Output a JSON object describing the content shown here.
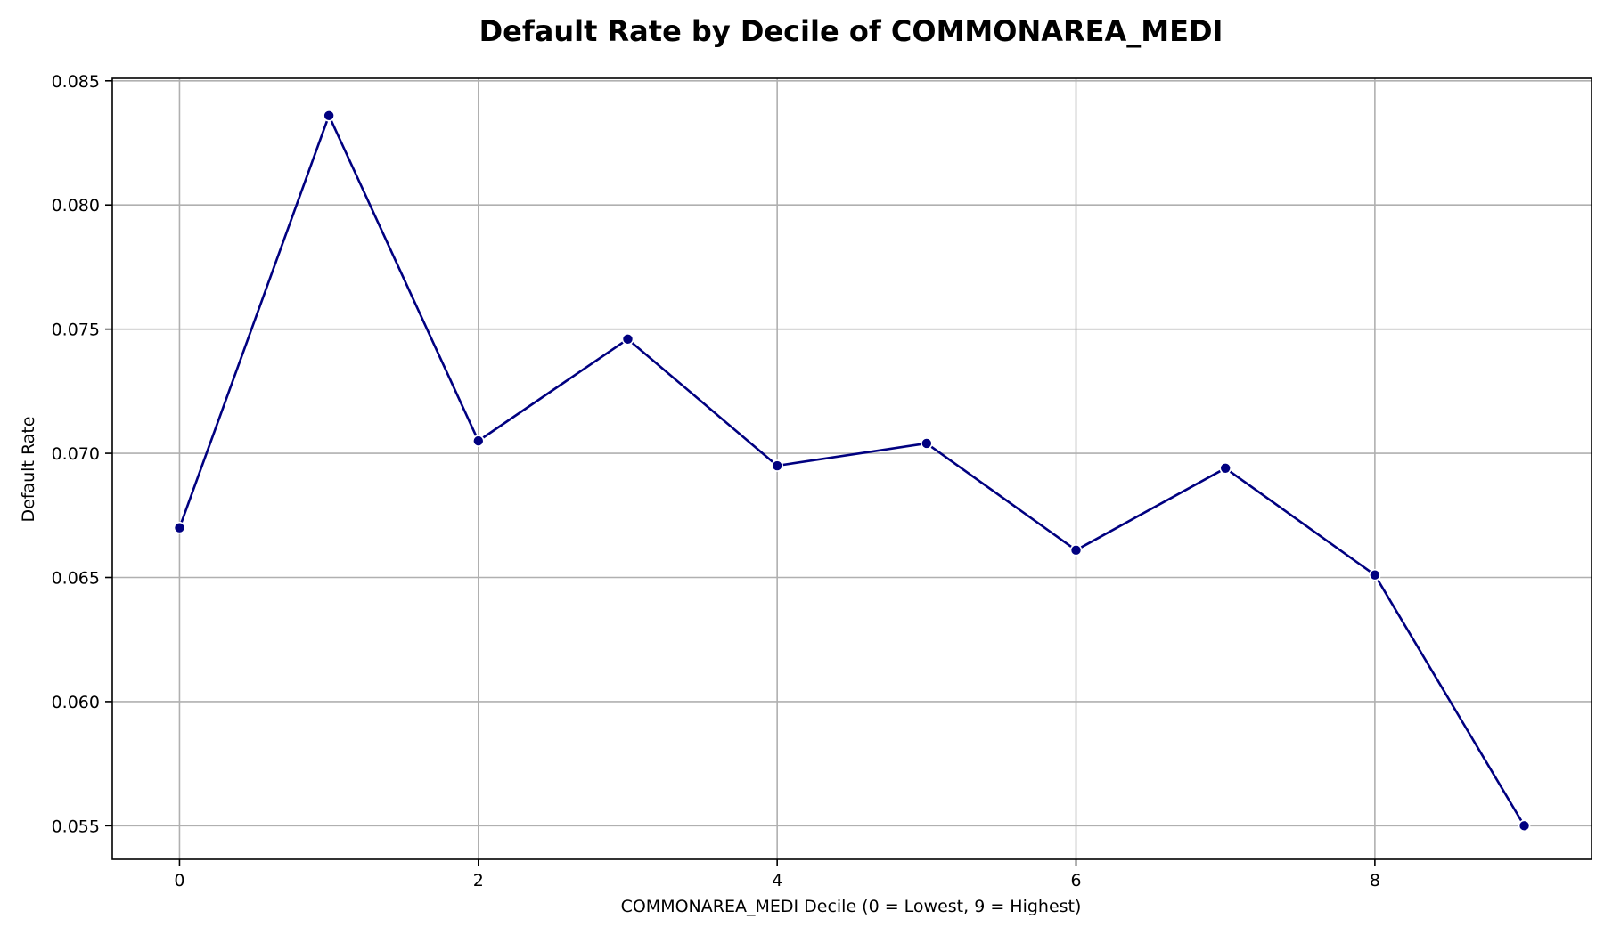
{
  "chart_data": {
    "type": "line",
    "title": "Default Rate by Decile of COMMONAREA_MEDI",
    "xlabel": "COMMONAREA_MEDI Decile (0 = Lowest, 9 = Highest)",
    "ylabel": "Default Rate",
    "x": [
      0,
      1,
      2,
      3,
      4,
      5,
      6,
      7,
      8,
      9
    ],
    "series": [
      {
        "values": [
          0.067,
          0.0836,
          0.0705,
          0.0746,
          0.0695,
          0.0704,
          0.0661,
          0.0694,
          0.0651,
          0.055
        ]
      }
    ],
    "xlim": [
      -0.45,
      9.45
    ],
    "ylim": [
      0.05365,
      0.0851
    ],
    "xticks": [
      0,
      2,
      4,
      6,
      8
    ],
    "yticks": [
      0.055,
      0.06,
      0.065,
      0.07,
      0.075,
      0.08,
      0.085
    ],
    "xtick_labels": [
      "0",
      "2",
      "4",
      "6",
      "8"
    ],
    "ytick_labels": [
      "0.055",
      "0.060",
      "0.065",
      "0.070",
      "0.075",
      "0.080",
      "0.085"
    ],
    "grid": true,
    "legend": "none",
    "line_color": "#000080",
    "marker_color": "#000080",
    "marker_edge_color": "#ffffff"
  }
}
